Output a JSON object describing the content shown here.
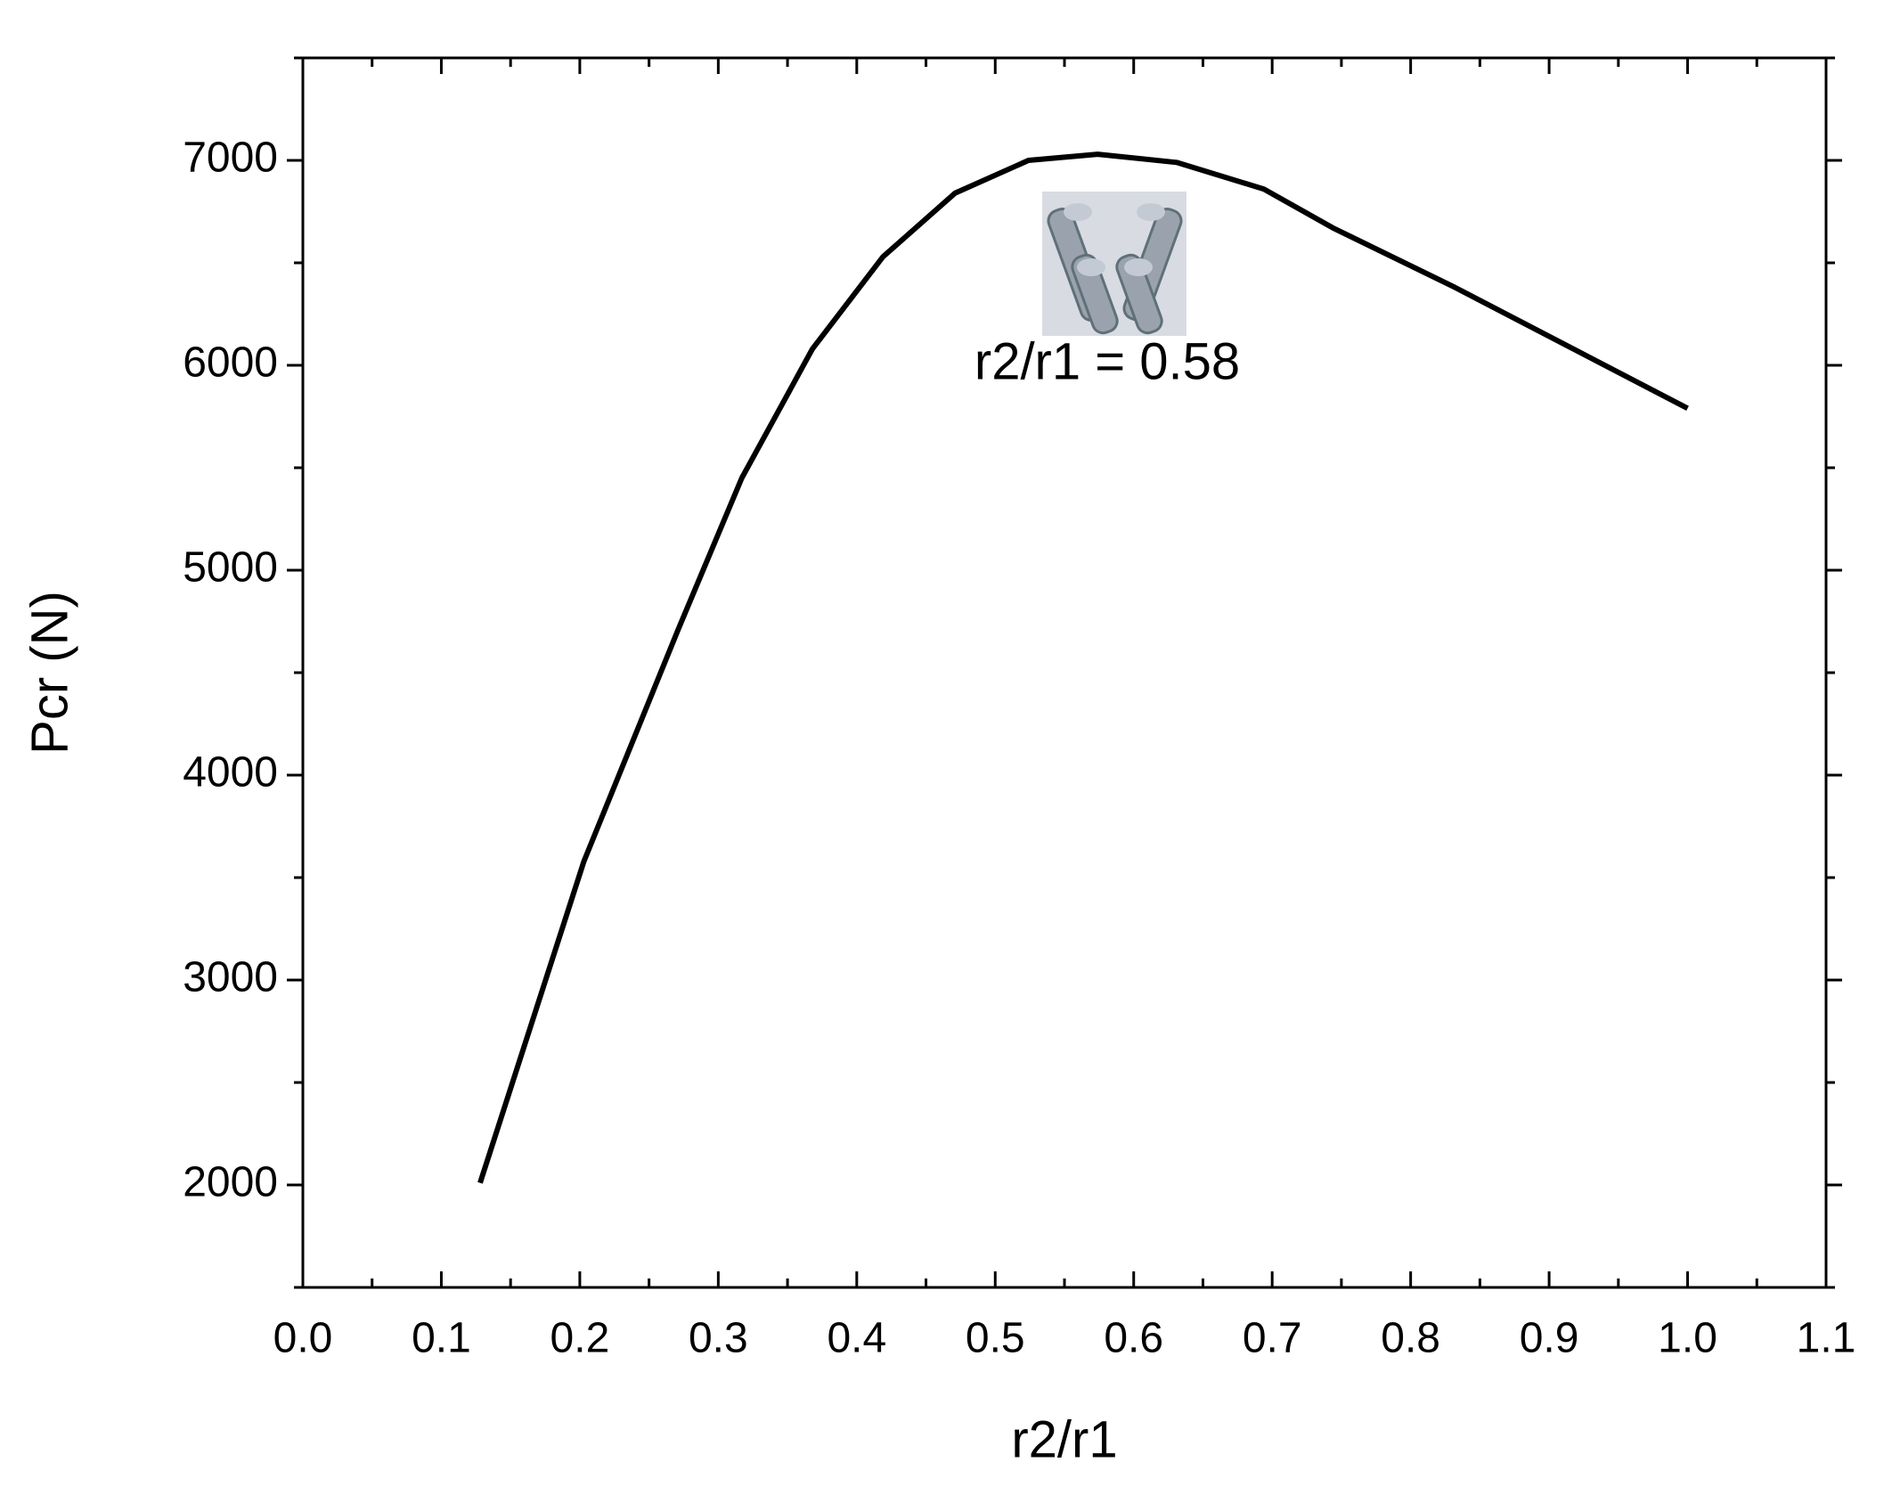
{
  "chart_data": {
    "type": "line",
    "x_label": "r2/r1",
    "y_label": "Pcr (N)",
    "annotation": "r2/r1 = 0.58",
    "x": [
      0.128,
      0.203,
      0.271,
      0.317,
      0.368,
      0.419,
      0.471,
      0.524,
      0.574,
      0.631,
      0.694,
      0.744,
      0.832,
      1.0
    ],
    "values": [
      2010,
      3580,
      4710,
      5450,
      6080,
      6530,
      6840,
      7000,
      7030,
      6990,
      6860,
      6670,
      6380,
      5790
    ],
    "color": "#000000",
    "xlim": [
      0,
      1.1
    ],
    "xticks": [
      {
        "value": 0,
        "label": "0.0"
      },
      0.1,
      0.2,
      0.3,
      0.4,
      0.5,
      0.6,
      0.7,
      0.8,
      0.9,
      {
        "value": 1,
        "label": "1.0"
      },
      1.1
    ],
    "ylim": [
      1500,
      7500
    ],
    "yticks": [
      2000,
      3000,
      4000,
      5000,
      6000,
      7000
    ],
    "grid": false
  }
}
